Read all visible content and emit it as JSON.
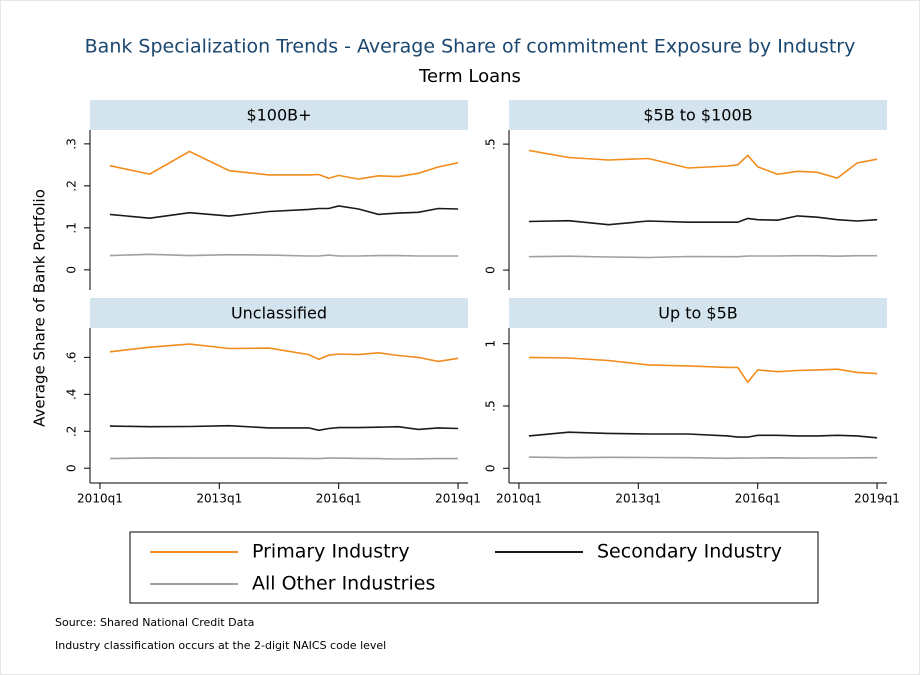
{
  "title": "Bank Specialization Trends - Average Share of commitment Exposure by Industry",
  "subtitle": "Term Loans",
  "y_label": "Average Share of Bank Portfolio",
  "source": "Source: Shared National Credit Data",
  "note": "Industry classification occurs at the 2-digit NAICS code level",
  "chart_data": [
    {
      "type": "line",
      "title": "$100B+",
      "x": [
        "2010q2",
        "2011q2",
        "2012q2",
        "2013q2",
        "2014q2",
        "2015q2",
        "2015q3",
        "2015q4",
        "2016q1",
        "2016q3",
        "2017q1",
        "2017q3",
        "2018q1",
        "2018q3",
        "2019q1"
      ],
      "xlim": [
        "2009q4",
        "2019q2"
      ],
      "ylim": [
        -0.048,
        0.333
      ],
      "yticks": [
        0,
        {
          "value": 0.1,
          "label": ".1"
        },
        {
          "value": 0.2,
          "label": ".2"
        },
        {
          "value": 0.3,
          "label": ".3"
        }
      ],
      "series": [
        {
          "name": "Primary Industry",
          "color": "#f28c1c",
          "values": [
            0.248,
            0.228,
            0.282,
            0.236,
            0.226,
            0.226,
            0.227,
            0.218,
            0.225,
            0.216,
            0.224,
            0.222,
            0.23,
            0.245,
            0.255
          ]
        },
        {
          "name": "Secondary Industry",
          "color": "#1a1a1a",
          "values": [
            0.132,
            0.123,
            0.136,
            0.128,
            0.139,
            0.144,
            0.146,
            0.146,
            0.152,
            0.145,
            0.132,
            0.135,
            0.137,
            0.146,
            0.145
          ]
        },
        {
          "name": "All Other Industries",
          "color": "#a0a0a0",
          "values": [
            0.034,
            0.037,
            0.034,
            0.036,
            0.035,
            0.033,
            0.033,
            0.035,
            0.033,
            0.033,
            0.034,
            0.034,
            0.033,
            0.033,
            0.033
          ]
        }
      ]
    },
    {
      "type": "line",
      "title": "$5B to $100B",
      "x": [
        "2010q2",
        "2011q2",
        "2012q2",
        "2013q2",
        "2014q2",
        "2015q2",
        "2015q3",
        "2015q4",
        "2016q1",
        "2016q3",
        "2017q1",
        "2017q3",
        "2018q1",
        "2018q3",
        "2019q1"
      ],
      "xlim": [
        "2009q4",
        "2019q2"
      ],
      "ylim": [
        -0.079,
        0.556
      ],
      "yticks": [
        0,
        {
          "value": 0.5,
          "label": ".5"
        }
      ],
      "series": [
        {
          "color": "#f28c1c",
          "values": [
            0.475,
            0.447,
            0.437,
            0.443,
            0.405,
            0.413,
            0.418,
            0.455,
            0.41,
            0.38,
            0.392,
            0.388,
            0.365,
            0.425,
            0.44
          ]
        },
        {
          "color": "#1a1a1a",
          "values": [
            0.193,
            0.196,
            0.18,
            0.195,
            0.19,
            0.19,
            0.19,
            0.205,
            0.2,
            0.198,
            0.215,
            0.21,
            0.2,
            0.195,
            0.2
          ]
        },
        {
          "color": "#a0a0a0",
          "values": [
            0.053,
            0.055,
            0.052,
            0.05,
            0.054,
            0.053,
            0.053,
            0.056,
            0.056,
            0.056,
            0.057,
            0.057,
            0.055,
            0.057,
            0.057
          ]
        }
      ]
    },
    {
      "type": "line",
      "title": "Unclassified",
      "x": [
        "2010q2",
        "2011q2",
        "2012q2",
        "2013q2",
        "2014q2",
        "2015q2",
        "2015q3",
        "2015q4",
        "2016q1",
        "2016q3",
        "2017q1",
        "2017q3",
        "2018q1",
        "2018q3",
        "2019q1"
      ],
      "xlim": [
        "2009q4",
        "2019q2"
      ],
      "xticks": [
        "2010q1",
        "2013q1",
        "2016q1",
        "2019q1"
      ],
      "ylim": [
        -0.08,
        0.759
      ],
      "yticks": [
        0,
        {
          "value": 0.2,
          "label": ".2"
        },
        {
          "value": 0.4,
          "label": ".4"
        },
        {
          "value": 0.6,
          "label": ".6"
        }
      ],
      "series": [
        {
          "color": "#f28c1c",
          "values": [
            0.63,
            0.655,
            0.672,
            0.648,
            0.65,
            0.615,
            0.59,
            0.612,
            0.618,
            0.615,
            0.625,
            0.61,
            0.6,
            0.578,
            0.595
          ]
        },
        {
          "color": "#1a1a1a",
          "values": [
            0.228,
            0.225,
            0.226,
            0.23,
            0.218,
            0.218,
            0.205,
            0.215,
            0.22,
            0.22,
            0.222,
            0.225,
            0.21,
            0.218,
            0.215
          ]
        },
        {
          "color": "#a0a0a0",
          "values": [
            0.052,
            0.056,
            0.055,
            0.055,
            0.055,
            0.053,
            0.052,
            0.055,
            0.055,
            0.053,
            0.052,
            0.05,
            0.051,
            0.052,
            0.052
          ]
        }
      ]
    },
    {
      "type": "line",
      "title": "Up to $5B",
      "x": [
        "2010q2",
        "2011q2",
        "2012q2",
        "2013q2",
        "2014q2",
        "2015q2",
        "2015q3",
        "2015q4",
        "2016q1",
        "2016q3",
        "2017q1",
        "2017q3",
        "2018q1",
        "2018q3",
        "2019q1"
      ],
      "xlim": [
        "2009q4",
        "2019q2"
      ],
      "xticks": [
        "2010q1",
        "2013q1",
        "2016q1",
        "2019q1"
      ],
      "ylim": [
        -0.118,
        1.126
      ],
      "yticks": [
        0,
        {
          "value": 0.5,
          "label": ".5"
        },
        1
      ],
      "series": [
        {
          "color": "#f28c1c",
          "values": [
            0.89,
            0.885,
            0.865,
            0.83,
            0.822,
            0.81,
            0.81,
            0.69,
            0.79,
            0.775,
            0.785,
            0.79,
            0.795,
            0.77,
            0.76
          ]
        },
        {
          "color": "#1a1a1a",
          "values": [
            0.26,
            0.29,
            0.28,
            0.275,
            0.275,
            0.26,
            0.25,
            0.25,
            0.265,
            0.265,
            0.26,
            0.26,
            0.265,
            0.26,
            0.245
          ]
        },
        {
          "color": "#a0a0a0",
          "values": [
            0.09,
            0.085,
            0.088,
            0.087,
            0.085,
            0.08,
            0.082,
            0.082,
            0.083,
            0.084,
            0.082,
            0.083,
            0.083,
            0.084,
            0.085
          ]
        }
      ]
    }
  ]
}
